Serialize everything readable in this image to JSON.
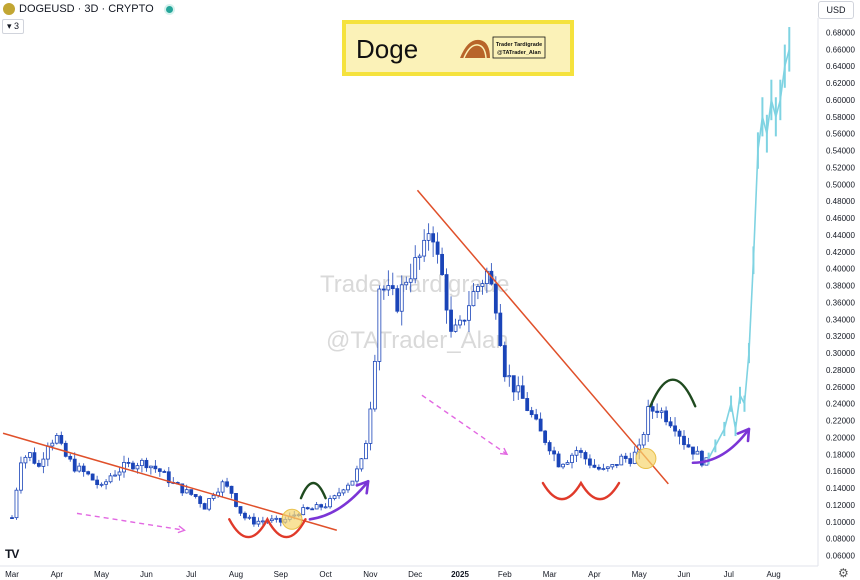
{
  "header": {
    "symbol_title": "DOGEUSD · 3D · CRYPTO",
    "indicator_badge": "3",
    "currency": "USD"
  },
  "logo": {
    "label": "Doge",
    "text_line1": "Trader Tardigrade",
    "text_line2": "@TATrader_Alan"
  },
  "watermark": {
    "line1": "Trader Tardigrade",
    "line2": "@TATrader_Alan"
  },
  "colors": {
    "candle_body": "#1a44b8",
    "projection": "#7fd3e2",
    "trendline": "#e0502a",
    "arrow": "#7b35d6",
    "cup": "#e03a2a",
    "hat": "#1f4a1f",
    "dashed": "#e268e2",
    "breakout_marker": "#f6d66f",
    "logo_border": "#f5e23d",
    "logo_fill": "#fbf2b8"
  },
  "chart_data": {
    "type": "candlestick",
    "ylim": [
      0.05,
      0.69
    ],
    "y_ticks": [
      0.06,
      0.08,
      0.1,
      0.12,
      0.14,
      0.16,
      0.18,
      0.2,
      0.22,
      0.24,
      0.26,
      0.28,
      0.3,
      0.32,
      0.34,
      0.36,
      0.38,
      0.4,
      0.42,
      0.44,
      0.46,
      0.48,
      0.5,
      0.52,
      0.54,
      0.56,
      0.58,
      0.6,
      0.62,
      0.64,
      0.66,
      0.68
    ],
    "x_ticks": [
      {
        "label": "Mar",
        "m": 0
      },
      {
        "label": "Apr",
        "m": 1
      },
      {
        "label": "May",
        "m": 2
      },
      {
        "label": "Jun",
        "m": 3
      },
      {
        "label": "Jul",
        "m": 4
      },
      {
        "label": "Aug",
        "m": 5
      },
      {
        "label": "Sep",
        "m": 6
      },
      {
        "label": "Oct",
        "m": 7
      },
      {
        "label": "Nov",
        "m": 8
      },
      {
        "label": "Dec",
        "m": 9
      },
      {
        "label": "2025",
        "m": 10,
        "bold": true
      },
      {
        "label": "Feb",
        "m": 11
      },
      {
        "label": "Mar",
        "m": 12
      },
      {
        "label": "Apr",
        "m": 13
      },
      {
        "label": "May",
        "m": 14
      },
      {
        "label": "Jun",
        "m": 15
      },
      {
        "label": "Jul",
        "m": 16
      },
      {
        "label": "Aug",
        "m": 17
      }
    ],
    "price_path": [
      [
        0.0,
        0.105
      ],
      [
        0.2,
        0.175
      ],
      [
        0.4,
        0.18
      ],
      [
        0.6,
        0.165
      ],
      [
        0.8,
        0.195
      ],
      [
        1.0,
        0.2
      ],
      [
        1.15,
        0.18
      ],
      [
        1.4,
        0.165
      ],
      [
        1.7,
        0.155
      ],
      [
        2.0,
        0.14
      ],
      [
        2.2,
        0.155
      ],
      [
        2.5,
        0.165
      ],
      [
        2.8,
        0.17
      ],
      [
        3.0,
        0.17
      ],
      [
        3.3,
        0.16
      ],
      [
        3.6,
        0.145
      ],
      [
        3.9,
        0.135
      ],
      [
        4.1,
        0.13
      ],
      [
        4.3,
        0.118
      ],
      [
        4.5,
        0.135
      ],
      [
        4.7,
        0.145
      ],
      [
        4.9,
        0.135
      ],
      [
        5.05,
        0.115
      ],
      [
        5.2,
        0.105
      ],
      [
        5.4,
        0.1
      ],
      [
        5.7,
        0.102
      ],
      [
        6.0,
        0.1
      ],
      [
        6.2,
        0.105
      ],
      [
        6.4,
        0.112
      ],
      [
        6.7,
        0.115
      ],
      [
        7.0,
        0.12
      ],
      [
        7.2,
        0.128
      ],
      [
        7.4,
        0.142
      ],
      [
        7.6,
        0.15
      ],
      [
        7.8,
        0.17
      ],
      [
        7.95,
        0.21
      ],
      [
        8.1,
        0.3
      ],
      [
        8.2,
        0.38
      ],
      [
        8.4,
        0.37
      ],
      [
        8.6,
        0.36
      ],
      [
        8.8,
        0.39
      ],
      [
        9.0,
        0.405
      ],
      [
        9.2,
        0.42
      ],
      [
        9.35,
        0.46
      ],
      [
        9.5,
        0.41
      ],
      [
        9.65,
        0.38
      ],
      [
        9.8,
        0.32
      ],
      [
        10.0,
        0.33
      ],
      [
        10.2,
        0.36
      ],
      [
        10.4,
        0.38
      ],
      [
        10.6,
        0.395
      ],
      [
        10.8,
        0.36
      ],
      [
        11.0,
        0.28
      ],
      [
        11.2,
        0.26
      ],
      [
        11.4,
        0.245
      ],
      [
        11.6,
        0.225
      ],
      [
        11.8,
        0.205
      ],
      [
        12.0,
        0.19
      ],
      [
        12.2,
        0.17
      ],
      [
        12.4,
        0.175
      ],
      [
        12.6,
        0.185
      ],
      [
        12.8,
        0.175
      ],
      [
        13.0,
        0.165
      ],
      [
        13.2,
        0.16
      ],
      [
        13.4,
        0.165
      ],
      [
        13.6,
        0.175
      ],
      [
        13.8,
        0.175
      ],
      [
        14.0,
        0.185
      ],
      [
        14.2,
        0.23
      ],
      [
        14.4,
        0.235
      ],
      [
        14.6,
        0.225
      ],
      [
        14.8,
        0.215
      ],
      [
        15.0,
        0.195
      ],
      [
        15.2,
        0.185
      ],
      [
        15.45,
        0.17
      ],
      [
        15.55,
        0.17
      ]
    ],
    "projection_steps": [
      [
        15.55,
        0.175
      ],
      [
        15.7,
        0.19
      ],
      [
        15.9,
        0.21
      ],
      [
        16.05,
        0.24
      ],
      [
        16.15,
        0.21
      ],
      [
        16.25,
        0.25
      ],
      [
        16.35,
        0.24
      ],
      [
        16.45,
        0.3
      ],
      [
        16.55,
        0.41
      ],
      [
        16.65,
        0.54
      ],
      [
        16.75,
        0.58
      ],
      [
        16.85,
        0.56
      ],
      [
        16.95,
        0.6
      ],
      [
        17.05,
        0.58
      ],
      [
        17.15,
        0.6
      ],
      [
        17.25,
        0.64
      ],
      [
        17.35,
        0.66
      ]
    ],
    "trendlines": [
      {
        "from": [
          -0.2,
          0.205
        ],
        "to": [
          7.25,
          0.09
        ]
      },
      {
        "from": [
          9.05,
          0.493
        ],
        "to": [
          14.65,
          0.145
        ]
      }
    ],
    "breakout_markers": [
      [
        6.25,
        0.103
      ],
      [
        14.15,
        0.175
      ]
    ],
    "dashed_arrows": [
      {
        "from": [
          1.45,
          0.11
        ],
        "to": [
          3.85,
          0.09
        ]
      },
      {
        "from": [
          9.15,
          0.25
        ],
        "to": [
          11.05,
          0.18
        ]
      }
    ],
    "cups": [
      {
        "x1": 4.85,
        "x2": 6.55,
        "y_top": 0.103,
        "y_bottom": 0.075
      },
      {
        "x1": 11.85,
        "x2": 13.55,
        "y_top": 0.146,
        "y_bottom": 0.122
      }
    ],
    "hats": [
      {
        "x1": 6.45,
        "x2": 7.0,
        "y_base": 0.128,
        "y_top": 0.148
      },
      {
        "x1": 14.25,
        "x2": 15.25,
        "y_base": 0.237,
        "y_top": 0.272
      }
    ],
    "arrows": [
      {
        "path": [
          [
            6.65,
            0.103
          ],
          [
            7.35,
            0.108
          ],
          [
            7.95,
            0.148
          ]
        ]
      },
      {
        "path": [
          [
            15.2,
            0.17
          ],
          [
            15.9,
            0.17
          ],
          [
            16.45,
            0.21
          ]
        ]
      }
    ]
  }
}
